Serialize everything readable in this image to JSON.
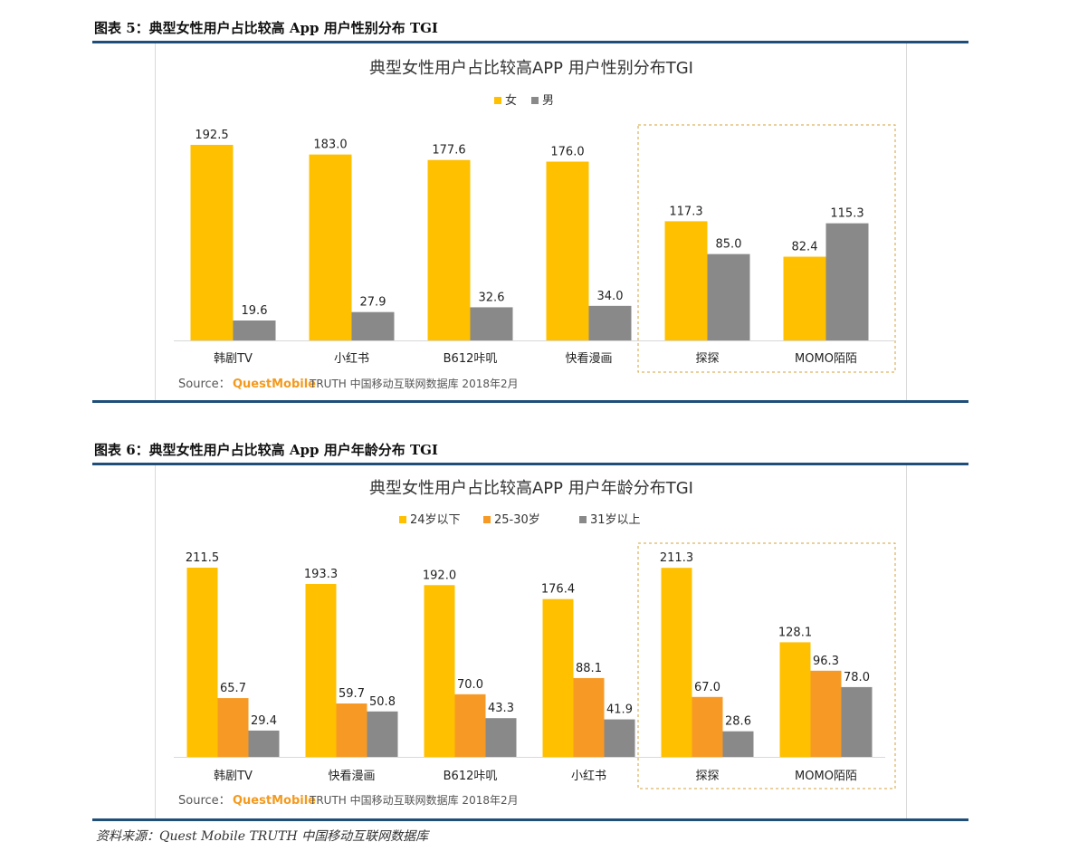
{
  "page": {
    "caption1": "图表 5：典型女性用户占比较高 App 用户性别分布 TGI",
    "caption2": "图表 6：典型女性用户占比较高 App 用户年龄分布 TGI",
    "footnote": "资料来源：Quest Mobile TRUTH 中国移动互联网数据库"
  },
  "chart_data": [
    {
      "type": "bar",
      "title": "典型女性用户占比较高APP 用户性别分布TGI",
      "categories": [
        "韩剧TV",
        "小红书",
        "B612咔叽",
        "快看漫画",
        "探探",
        "MOMO陌陌"
      ],
      "series": [
        {
          "name": "女",
          "color": "#ffc000",
          "values": [
            192.5,
            183.0,
            177.6,
            176.0,
            117.3,
            82.4
          ]
        },
        {
          "name": "男",
          "color": "#898989",
          "values": [
            19.6,
            27.9,
            32.6,
            34.0,
            85.0,
            115.3
          ]
        }
      ],
      "value_labels": [
        [
          "192.5",
          "183.0",
          "177.6",
          "176.0",
          "117.3",
          "82.4"
        ],
        [
          "19.6",
          "27.9",
          "32.6",
          "34.0",
          "85.0",
          "115.3"
        ]
      ],
      "legend_position": "top",
      "highlight_categories": [
        "探探",
        "MOMO陌陌"
      ],
      "source_label": "Source：",
      "source_brand": "QuestMobile",
      "source_text": "TRUTH 中国移动互联网数据库 2018年2月"
    },
    {
      "type": "bar",
      "title": "典型女性用户占比较高APP 用户年龄分布TGI",
      "categories": [
        "韩剧TV",
        "快看漫画",
        "B612咔叽",
        "小红书",
        "探探",
        "MOMO陌陌"
      ],
      "series": [
        {
          "name": "24岁以下",
          "color": "#ffc000",
          "values": [
            211.5,
            193.3,
            192.0,
            176.4,
            211.3,
            128.1
          ]
        },
        {
          "name": "25-30岁",
          "color": "#f79a25",
          "values": [
            65.7,
            59.7,
            70.0,
            88.1,
            67.0,
            96.3
          ]
        },
        {
          "name": "31岁以上",
          "color": "#898989",
          "values": [
            29.4,
            50.8,
            43.3,
            41.9,
            28.6,
            78.0
          ]
        }
      ],
      "value_labels": [
        [
          "211.5",
          "193.3",
          "192.0",
          "176.4",
          "211.3",
          "128.1"
        ],
        [
          "65.7",
          "59.7",
          "70.0",
          "88.1",
          "67.0",
          "96.3"
        ],
        [
          "29.4",
          "50.8",
          "43.3",
          "41.9",
          "28.6",
          "78.0"
        ]
      ],
      "legend_position": "top",
      "highlight_categories": [
        "探探",
        "MOMO陌陌"
      ],
      "source_label": "Source：",
      "source_brand": "QuestMobile",
      "source_text": "TRUTH 中国移动互联网数据库 2018年2月"
    }
  ]
}
